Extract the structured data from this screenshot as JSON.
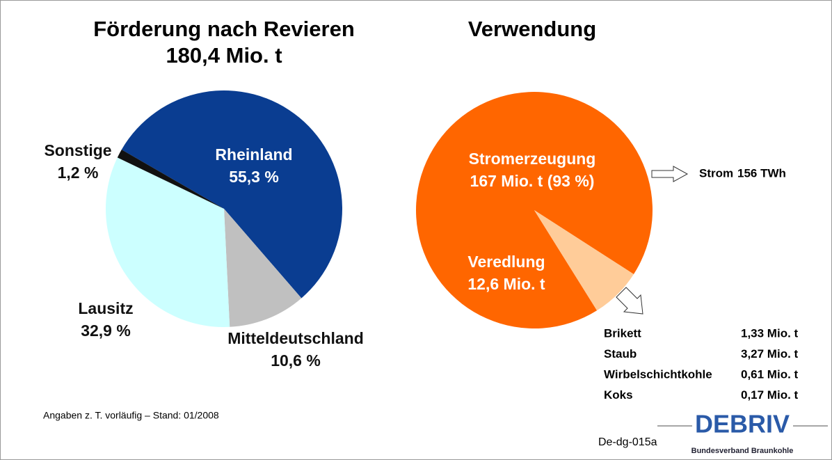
{
  "chart_data": [
    {
      "type": "pie",
      "title": "Förderung nach Revieren",
      "subtitle": "180,4 Mio. t",
      "categories": [
        "Rheinland",
        "Mitteldeutschland",
        "Lausitz",
        "Sonstige"
      ],
      "values": [
        55.3,
        10.6,
        32.9,
        1.2
      ],
      "value_labels": [
        "55,3 %",
        "10,6 %",
        "32,9 %",
        "1,2 %"
      ],
      "colors": [
        "#0a3d91",
        "#c0c0c0",
        "#ccffff",
        "#111111"
      ]
    },
    {
      "type": "pie",
      "title": "Verwendung",
      "categories": [
        "Stromerzeugung",
        "Veredlung"
      ],
      "values": [
        167,
        12.6
      ],
      "value_labels": [
        "167 Mio. t (93 %)",
        "12,6 Mio. t"
      ],
      "colors": [
        "#ff6600",
        "#ffcc99"
      ]
    }
  ],
  "strom_note": {
    "label": "Strom",
    "value": "156 TWh"
  },
  "veredlung_breakdown": {
    "rows": [
      [
        "Brikett",
        "1,33 Mio. t"
      ],
      [
        "Staub",
        "3,27 Mio. t"
      ],
      [
        "Wirbelschichtkohle",
        "0,61 Mio. t"
      ],
      [
        "Koks",
        "0,17 Mio. t"
      ]
    ]
  },
  "footnote": "Angaben  z. T. vorläufig – Stand: 01/2008",
  "code": "De-dg-015a",
  "logo": {
    "name": "DEBRIV",
    "tagline": "Bundesverband Braunkohle"
  }
}
